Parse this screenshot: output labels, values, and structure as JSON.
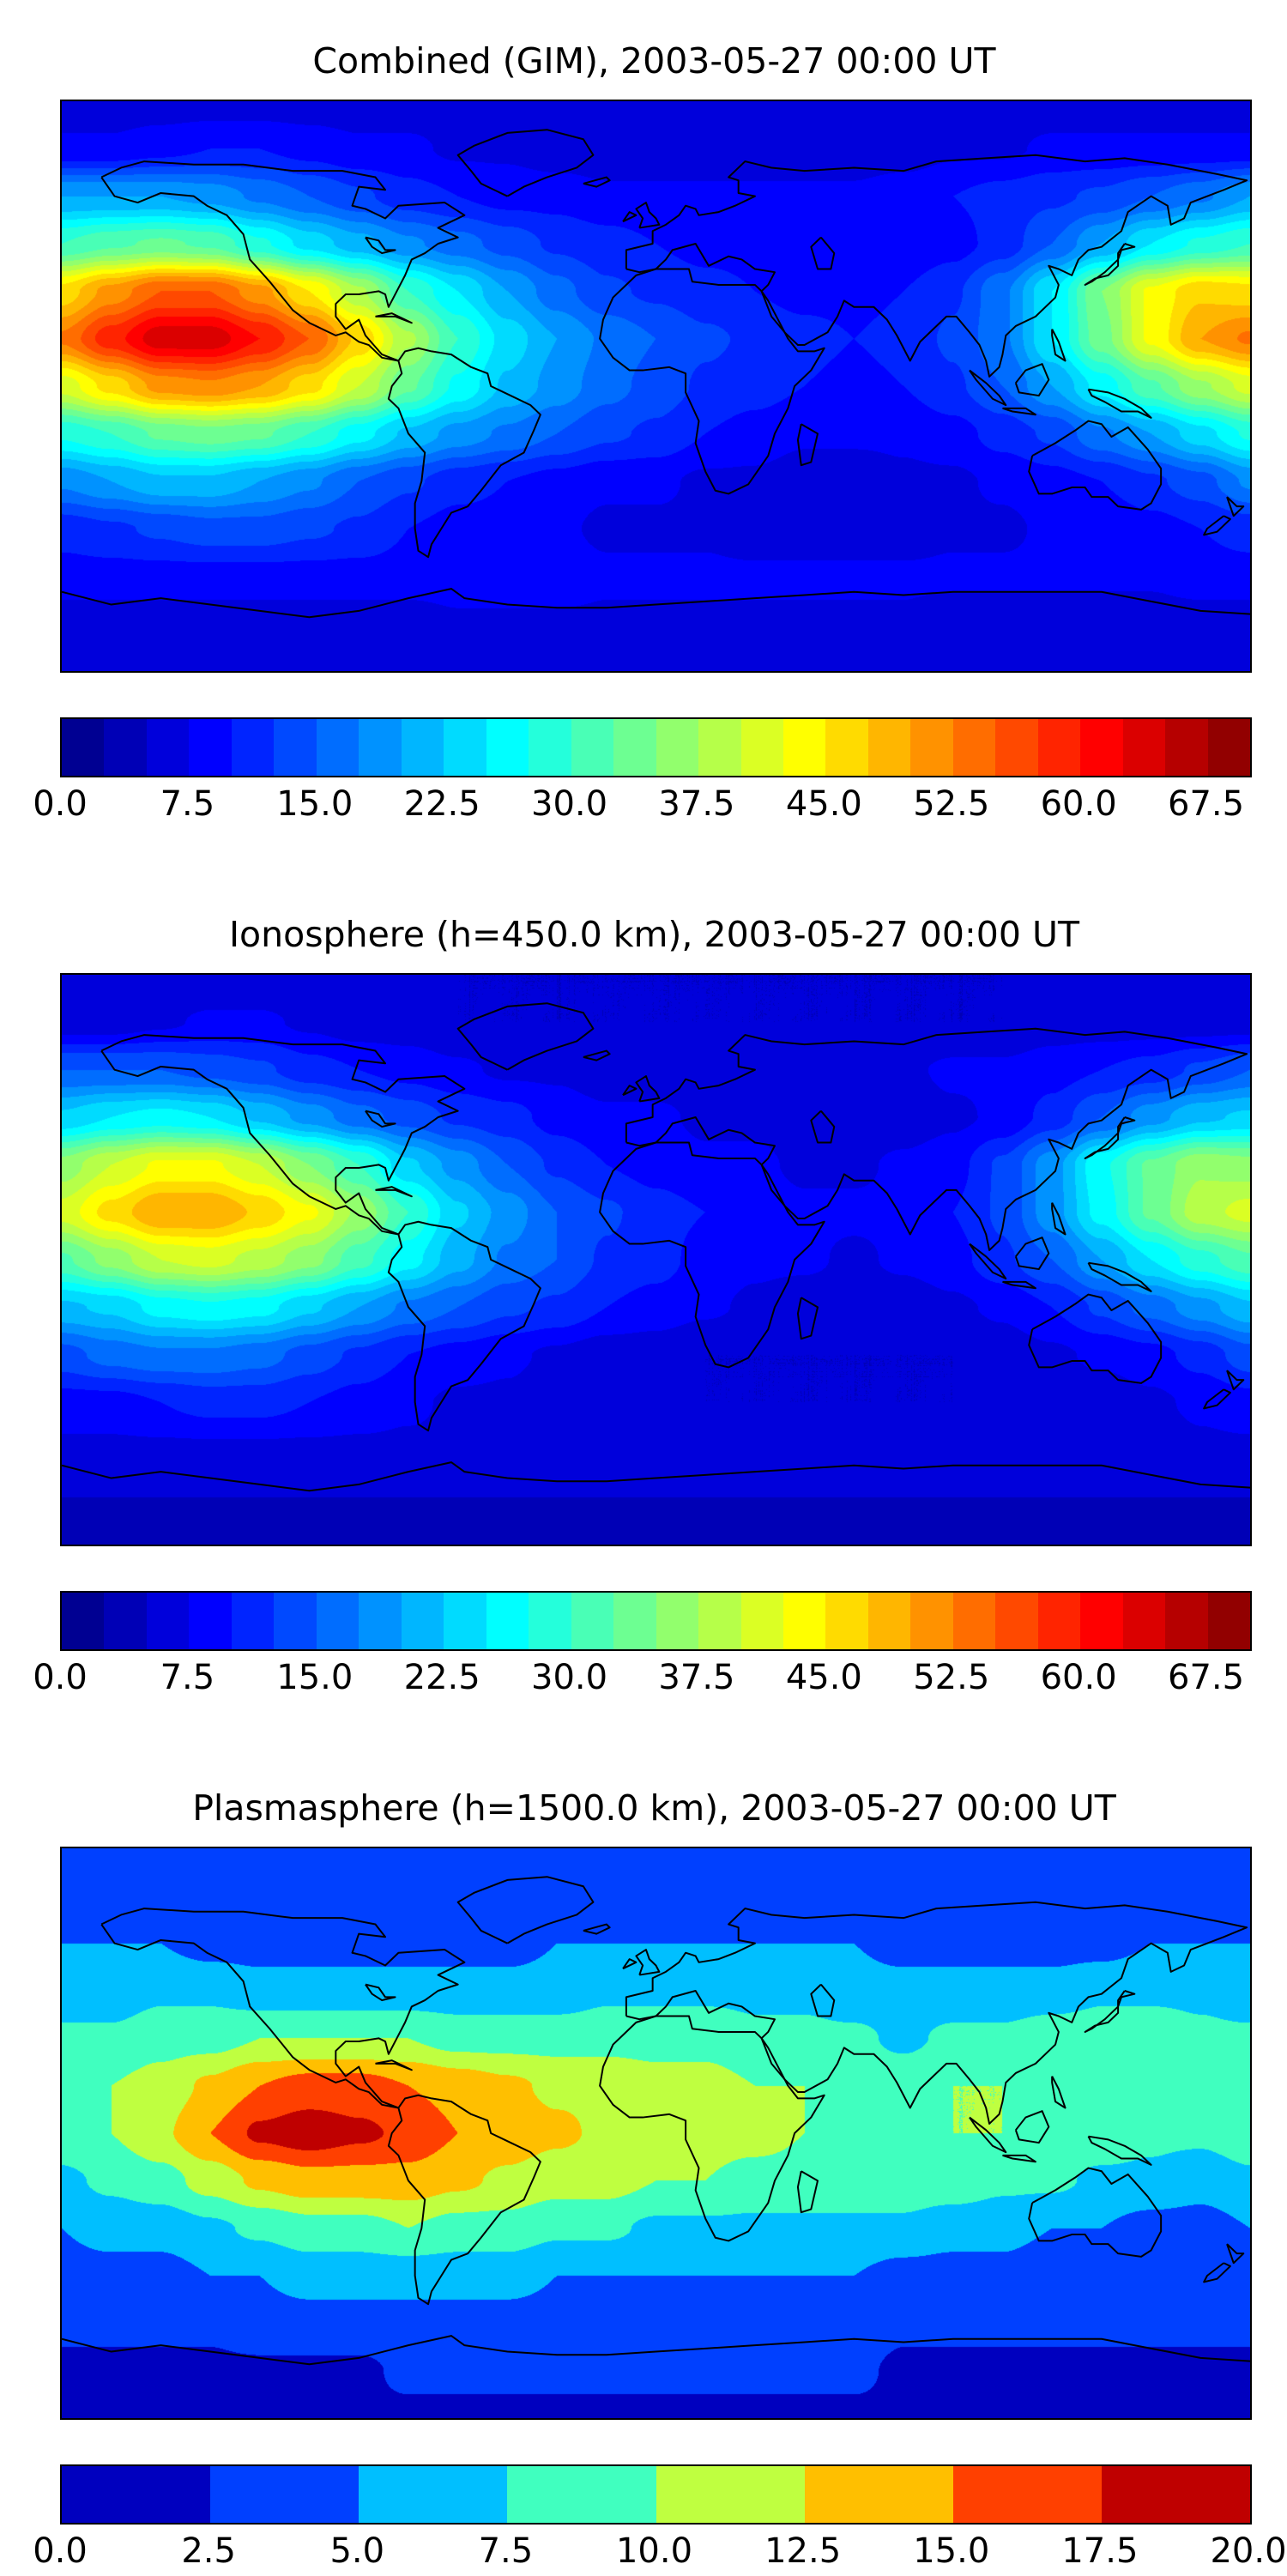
{
  "figure": {
    "background": "#ffffff",
    "accent_colormap": "jet",
    "panels": [
      {
        "title": "Combined (GIM), 2003-05-27 00:00 UT",
        "colorbar": {
          "vmin": 0,
          "vmax": 70,
          "interval": 2.5,
          "n_intervals": 28,
          "ticks": [
            {
              "label": "0.0",
              "value": 0
            },
            {
              "label": "7.5",
              "value": 7.5
            },
            {
              "label": "15.0",
              "value": 15
            },
            {
              "label": "22.5",
              "value": 22.5
            },
            {
              "label": "30.0",
              "value": 30
            },
            {
              "label": "37.5",
              "value": 37.5
            },
            {
              "label": "45.0",
              "value": 45
            },
            {
              "label": "52.5",
              "value": 52.5
            },
            {
              "label": "60.0",
              "value": 60
            },
            {
              "label": "67.5",
              "value": 67.5
            }
          ]
        }
      },
      {
        "title": "Ionosphere (h=450.0 km), 2003-05-27 00:00 UT",
        "colorbar": {
          "vmin": 0,
          "vmax": 70,
          "interval": 2.5,
          "n_intervals": 28,
          "ticks": [
            {
              "label": "0.0",
              "value": 0
            },
            {
              "label": "7.5",
              "value": 7.5
            },
            {
              "label": "15.0",
              "value": 15
            },
            {
              "label": "22.5",
              "value": 22.5
            },
            {
              "label": "30.0",
              "value": 30
            },
            {
              "label": "37.5",
              "value": 37.5
            },
            {
              "label": "45.0",
              "value": 45
            },
            {
              "label": "52.5",
              "value": 52.5
            },
            {
              "label": "60.0",
              "value": 60
            },
            {
              "label": "67.5",
              "value": 67.5
            }
          ]
        }
      },
      {
        "title": "Plasmasphere (h=1500.0 km), 2003-05-27 00:00 UT",
        "colorbar": {
          "vmin": 0,
          "vmax": 20,
          "interval": 2.5,
          "n_intervals": 8,
          "ticks": [
            {
              "label": "0.0",
              "value": 0
            },
            {
              "label": "2.5",
              "value": 2.5
            },
            {
              "label": "5.0",
              "value": 5
            },
            {
              "label": "7.5",
              "value": 7.5
            },
            {
              "label": "10.0",
              "value": 10
            },
            {
              "label": "12.5",
              "value": 12.5
            },
            {
              "label": "15.0",
              "value": 15
            },
            {
              "label": "17.5",
              "value": 17.5
            },
            {
              "label": "20.0",
              "value": 20
            }
          ]
        }
      }
    ]
  },
  "chart_data": [
    {
      "type": "heatmap",
      "title": "Combined (GIM), 2003-05-27 00:00 UT",
      "colormap": "jet",
      "projection": "equirectangular",
      "levels": {
        "min": 0,
        "max": 70,
        "step": 2.5
      },
      "lon": [
        -180,
        -165,
        -150,
        -135,
        -120,
        -105,
        -90,
        -75,
        -60,
        -45,
        -30,
        -15,
        0,
        15,
        30,
        45,
        60,
        75,
        90,
        105,
        120,
        135,
        150,
        165,
        180
      ],
      "lat": [
        90,
        75,
        60,
        45,
        30,
        15,
        0,
        -15,
        -30,
        -45,
        -60,
        -75,
        -90
      ],
      "values": [
        [
          6,
          6,
          6,
          6,
          6,
          6,
          6,
          6,
          6,
          6,
          6,
          6,
          6,
          6,
          6,
          6,
          6,
          6,
          6,
          6,
          6,
          6,
          6,
          6,
          6
        ],
        [
          8,
          8,
          9,
          10,
          10,
          9,
          8,
          8,
          7,
          7,
          6,
          6,
          6,
          6,
          6,
          6,
          6,
          6,
          7,
          7,
          8,
          8,
          8,
          8,
          8
        ],
        [
          20,
          20,
          20,
          19,
          17,
          15,
          13,
          11,
          10,
          9,
          9,
          8,
          8,
          8,
          8,
          8,
          8,
          9,
          10,
          11,
          12,
          13,
          15,
          17,
          20
        ],
        [
          30,
          32,
          33,
          32,
          28,
          24,
          21,
          18,
          16,
          14,
          12,
          11,
          10,
          9,
          9,
          8,
          8,
          8,
          9,
          11,
          15,
          20,
          25,
          28,
          30
        ],
        [
          46,
          51,
          55,
          55,
          51,
          45,
          38,
          30,
          25,
          20,
          16,
          13,
          12,
          11,
          10,
          9,
          9,
          10,
          12,
          17,
          25,
          35,
          43,
          47,
          46
        ],
        [
          53,
          59,
          64,
          64,
          60,
          55,
          47,
          38,
          30,
          24,
          20,
          17,
          15,
          13,
          12,
          11,
          10,
          11,
          13,
          17,
          25,
          34,
          43,
          50,
          53
        ],
        [
          41,
          46,
          51,
          52,
          50,
          46,
          40,
          33,
          27,
          22,
          19,
          16,
          14,
          12,
          11,
          10,
          9,
          10,
          12,
          15,
          20,
          26,
          32,
          37,
          41
        ],
        [
          28,
          30,
          33,
          34,
          33,
          30,
          26,
          22,
          19,
          17,
          15,
          13,
          12,
          10,
          9,
          8,
          8,
          8,
          9,
          11,
          13,
          17,
          20,
          24,
          28
        ],
        [
          18,
          20,
          22,
          22,
          20,
          18,
          15,
          13,
          11,
          10,
          9,
          8,
          8,
          7,
          7,
          6,
          6,
          7,
          7,
          8,
          9,
          10,
          12,
          14,
          18
        ],
        [
          11,
          12,
          13,
          14,
          14,
          13,
          12,
          10,
          9,
          9,
          8,
          7,
          7,
          7,
          6,
          6,
          6,
          6,
          7,
          7,
          8,
          8,
          9,
          10,
          11
        ],
        [
          9,
          9,
          9,
          9,
          9,
          9,
          9,
          9,
          9,
          9,
          9,
          8,
          8,
          8,
          8,
          8,
          8,
          8,
          8,
          8,
          8,
          8,
          8,
          9,
          9
        ],
        [
          6,
          6,
          6,
          6,
          6,
          6,
          6,
          6,
          7,
          7,
          7,
          7,
          7,
          7,
          7,
          7,
          7,
          7,
          6,
          6,
          6,
          6,
          6,
          6,
          6
        ],
        [
          5,
          5,
          5,
          5,
          5,
          5,
          5,
          5,
          5,
          5,
          5,
          5,
          5,
          5,
          5,
          5,
          5,
          5,
          5,
          5,
          5,
          5,
          5,
          5,
          5
        ]
      ]
    },
    {
      "type": "heatmap",
      "title": "Ionosphere (h=450.0 km), 2003-05-27 00:00 UT",
      "colormap": "jet",
      "projection": "equirectangular",
      "levels": {
        "min": 0,
        "max": 70,
        "step": 2.5
      },
      "lon": [
        -180,
        -165,
        -150,
        -135,
        -120,
        -105,
        -90,
        -75,
        -60,
        -45,
        -30,
        -15,
        0,
        15,
        30,
        45,
        60,
        75,
        90,
        105,
        120,
        135,
        150,
        165,
        180
      ],
      "lat": [
        90,
        75,
        60,
        45,
        30,
        15,
        0,
        -15,
        -30,
        -45,
        -60,
        -75,
        -90
      ],
      "values": [
        [
          5,
          5,
          5,
          5,
          5,
          5,
          5,
          5,
          5,
          5,
          5,
          5,
          5,
          5,
          5,
          5,
          5,
          5,
          5,
          5,
          5,
          5,
          5,
          5,
          5
        ],
        [
          6,
          6,
          7,
          8,
          8,
          7,
          6,
          6,
          5,
          5,
          5,
          5,
          5,
          5,
          5,
          5,
          5,
          5,
          5,
          5,
          6,
          6,
          6,
          6,
          6
        ],
        [
          15,
          15,
          15,
          14,
          13,
          11,
          10,
          9,
          8,
          7,
          7,
          6,
          6,
          6,
          6,
          6,
          6,
          7,
          8,
          8,
          9,
          10,
          11,
          13,
          15
        ],
        [
          23,
          25,
          26,
          25,
          22,
          19,
          16,
          14,
          12,
          11,
          9,
          8,
          8,
          7,
          7,
          6,
          6,
          6,
          7,
          8,
          11,
          15,
          19,
          22,
          23
        ],
        [
          36,
          40,
          43,
          43,
          40,
          35,
          30,
          23,
          19,
          15,
          12,
          10,
          9,
          8,
          8,
          7,
          7,
          8,
          9,
          13,
          19,
          27,
          33,
          37,
          36
        ],
        [
          41,
          46,
          50,
          50,
          47,
          43,
          37,
          30,
          23,
          19,
          15,
          13,
          11,
          10,
          9,
          8,
          8,
          8,
          10,
          13,
          19,
          26,
          33,
          39,
          41
        ],
        [
          32,
          36,
          40,
          41,
          39,
          36,
          31,
          26,
          21,
          17,
          15,
          12,
          11,
          9,
          8,
          8,
          7,
          8,
          9,
          12,
          15,
          20,
          25,
          29,
          32
        ],
        [
          22,
          23,
          26,
          27,
          26,
          23,
          20,
          17,
          15,
          13,
          12,
          10,
          9,
          8,
          7,
          6,
          6,
          6,
          7,
          8,
          10,
          13,
          16,
          19,
          22
        ],
        [
          14,
          16,
          17,
          17,
          16,
          14,
          12,
          10,
          9,
          8,
          7,
          6,
          6,
          5,
          5,
          5,
          5,
          5,
          5,
          6,
          7,
          8,
          9,
          11,
          14
        ],
        [
          9,
          9,
          10,
          11,
          11,
          10,
          9,
          8,
          7,
          7,
          6,
          5,
          5,
          5,
          5,
          5,
          5,
          5,
          5,
          5,
          6,
          6,
          7,
          8,
          9
        ],
        [
          7,
          7,
          7,
          7,
          7,
          7,
          7,
          7,
          7,
          7,
          7,
          6,
          6,
          6,
          6,
          6,
          6,
          6,
          6,
          6,
          6,
          6,
          6,
          7,
          7
        ],
        [
          5,
          5,
          5,
          5,
          5,
          5,
          5,
          5,
          5,
          5,
          5,
          5,
          5,
          5,
          5,
          5,
          5,
          5,
          5,
          5,
          5,
          5,
          5,
          5,
          5
        ],
        [
          4,
          4,
          4,
          4,
          4,
          4,
          4,
          4,
          4,
          4,
          4,
          4,
          4,
          4,
          4,
          4,
          4,
          4,
          4,
          4,
          4,
          4,
          4,
          4,
          4
        ]
      ]
    },
    {
      "type": "heatmap",
      "title": "Plasmasphere (h=1500.0 km), 2003-05-27 00:00 UT",
      "colormap": "jet",
      "projection": "equirectangular",
      "levels": {
        "min": 0,
        "max": 20,
        "step": 2.5
      },
      "lon": [
        -180,
        -165,
        -150,
        -135,
        -120,
        -105,
        -90,
        -75,
        -60,
        -45,
        -30,
        -15,
        0,
        15,
        30,
        45,
        60,
        75,
        90,
        105,
        120,
        135,
        150,
        165,
        180
      ],
      "lat": [
        90,
        75,
        60,
        45,
        30,
        15,
        0,
        -15,
        -30,
        -45,
        -60,
        -75,
        -90
      ],
      "values": [
        [
          3,
          3,
          3,
          3,
          3,
          3,
          3,
          3,
          3,
          3,
          3,
          3,
          3,
          3,
          3,
          3,
          3,
          3,
          3,
          3,
          3,
          3,
          3,
          3,
          3
        ],
        [
          3,
          3,
          3,
          3,
          3,
          3,
          3,
          3,
          3,
          3,
          4,
          4,
          4,
          4,
          4,
          4,
          4,
          3,
          3,
          3,
          3,
          3,
          3,
          3,
          3
        ],
        [
          5,
          5,
          5,
          4,
          4,
          4,
          4,
          4,
          4,
          4,
          5,
          5,
          5,
          5,
          5,
          5,
          5,
          4,
          4,
          4,
          4,
          4,
          5,
          5,
          5
        ],
        [
          6,
          6,
          7,
          7,
          6,
          6,
          6,
          6,
          6,
          6,
          6,
          7,
          7,
          7,
          7,
          7,
          6,
          6,
          6,
          6,
          6,
          7,
          7,
          7,
          6
        ],
        [
          8,
          8,
          9,
          9,
          10,
          10,
          10,
          10,
          9,
          9,
          9,
          9,
          9,
          9,
          8,
          8,
          8,
          7,
          8,
          8,
          9,
          9,
          9,
          8,
          8
        ],
        [
          9,
          10,
          11,
          13,
          15,
          16,
          16,
          15,
          14,
          13,
          12,
          12,
          11,
          11,
          10,
          10,
          9,
          9,
          10,
          10,
          10,
          10,
          9,
          9,
          9
        ],
        [
          9,
          10,
          12,
          15,
          18,
          19,
          18,
          17,
          15,
          14,
          13,
          12,
          12,
          11,
          11,
          10,
          10,
          10,
          10,
          10,
          9,
          9,
          8,
          8,
          9
        ],
        [
          7,
          8,
          9,
          11,
          13,
          14,
          14,
          14,
          13,
          12,
          11,
          11,
          10,
          10,
          9,
          9,
          9,
          9,
          9,
          8,
          8,
          7,
          7,
          6,
          7
        ],
        [
          5,
          6,
          6,
          7,
          8,
          9,
          9,
          10,
          9,
          9,
          8,
          8,
          7,
          7,
          7,
          7,
          7,
          7,
          6,
          6,
          5,
          5,
          4,
          4,
          5
        ],
        [
          4,
          4,
          4,
          5,
          5,
          6,
          6,
          6,
          6,
          6,
          5,
          5,
          5,
          5,
          5,
          5,
          5,
          4,
          4,
          4,
          3,
          3,
          3,
          3,
          4
        ],
        [
          3,
          3,
          3,
          3,
          4,
          4,
          4,
          4,
          4,
          4,
          4,
          4,
          4,
          4,
          4,
          4,
          4,
          3,
          3,
          3,
          3,
          3,
          3,
          3,
          3
        ],
        [
          2,
          2,
          2,
          2,
          2,
          2,
          2,
          3,
          3,
          3,
          3,
          3,
          3,
          3,
          3,
          3,
          3,
          2,
          2,
          2,
          2,
          2,
          2,
          2,
          2
        ],
        [
          2,
          2,
          2,
          2,
          2,
          2,
          2,
          2,
          2,
          2,
          2,
          2,
          2,
          2,
          2,
          2,
          2,
          2,
          2,
          2,
          2,
          2,
          2,
          2,
          2
        ]
      ]
    }
  ]
}
